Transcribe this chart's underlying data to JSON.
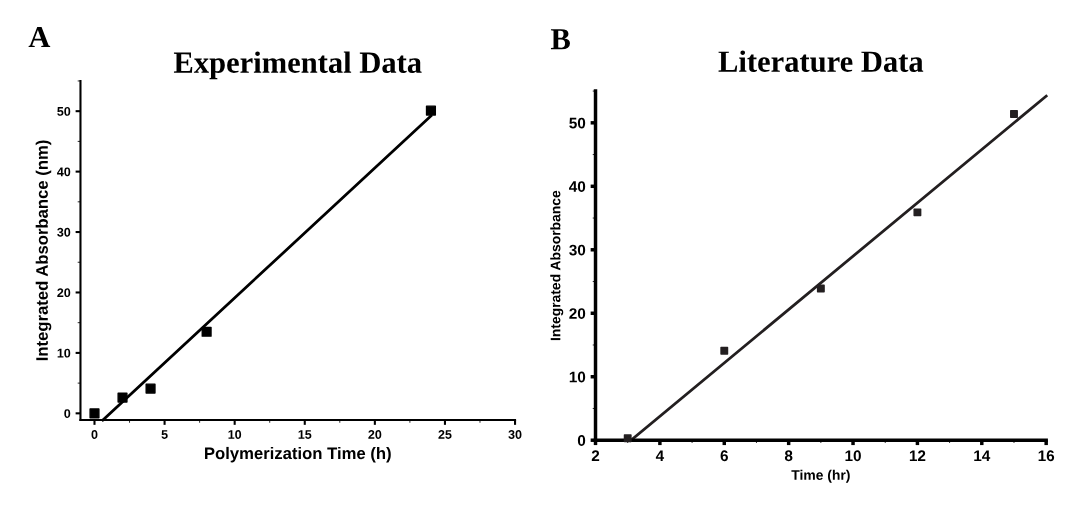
{
  "chart_data": [
    {
      "type": "scatter",
      "title": "Experimental Data",
      "xlabel": "Polymerization Time (h)",
      "ylabel": "Integrated Absorbance (nm)",
      "annotations": [
        "A"
      ],
      "grid": false,
      "xlim": [
        -1,
        30
      ],
      "ylim": [
        -1.1,
        55
      ],
      "xticks": [
        0,
        5,
        10,
        15,
        20,
        25,
        30
      ],
      "yticks": [
        0,
        10,
        20,
        30,
        40,
        50
      ],
      "series": [
        {
          "marker": "square",
          "color": "#000000",
          "x": [
            0,
            2,
            4,
            8,
            24
          ],
          "values": [
            0,
            2.6,
            4.1,
            13.5,
            50.1
          ]
        },
        {
          "type": "line",
          "color": "#000000",
          "x": [
            0.6,
            24
          ],
          "values": [
            -1.1,
            49.2
          ]
        }
      ]
    },
    {
      "type": "scatter",
      "title": "Literature Data",
      "xlabel": "Time (hr)",
      "ylabel": "Integrated Absorbance",
      "annotations": [
        "B"
      ],
      "grid": false,
      "xlim": [
        2,
        16
      ],
      "ylim": [
        0,
        55
      ],
      "xticks": [
        2,
        4,
        6,
        8,
        10,
        12,
        14,
        16
      ],
      "yticks": [
        0,
        10,
        20,
        30,
        40,
        50
      ],
      "series": [
        {
          "marker": "square",
          "color": "#231f20",
          "x": [
            3,
            6,
            9,
            12,
            15
          ],
          "values": [
            0.3,
            14.1,
            23.9,
            35.9,
            51.4
          ]
        },
        {
          "type": "line",
          "color": "#231f20",
          "x": [
            3.1,
            16
          ],
          "values": [
            0,
            54.2
          ]
        }
      ]
    }
  ]
}
